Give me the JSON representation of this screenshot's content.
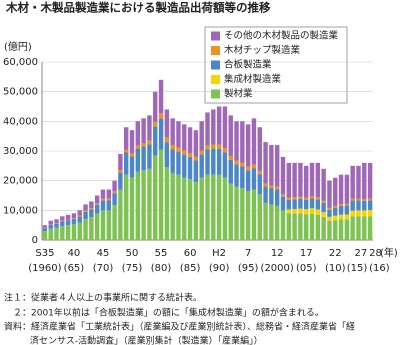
{
  "chart_data": {
    "type": "stacked_bar",
    "title": "木材・木製品製造業における製造品出荷額等の推移",
    "y_axis_label": "(億円)",
    "x_axis_label": "(年)",
    "categories": [
      "S35",
      null,
      null,
      null,
      null,
      "40",
      null,
      null,
      null,
      null,
      "45",
      null,
      null,
      null,
      null,
      "50",
      null,
      null,
      null,
      null,
      "55",
      null,
      null,
      null,
      null,
      "60",
      null,
      null,
      null,
      null,
      "H2",
      null,
      null,
      null,
      null,
      "7",
      null,
      null,
      null,
      null,
      "12",
      null,
      null,
      null,
      null,
      "17",
      null,
      null,
      null,
      null,
      "22",
      null,
      null,
      null,
      null,
      "27",
      "28"
    ],
    "category_years": [
      "(1960)",
      null,
      null,
      null,
      null,
      "(65)",
      null,
      null,
      null,
      null,
      "(70)",
      null,
      null,
      null,
      null,
      "(75)",
      null,
      null,
      null,
      null,
      "(80)",
      null,
      null,
      null,
      null,
      "(85)",
      null,
      null,
      null,
      null,
      "(90)",
      null,
      null,
      null,
      null,
      "(95)",
      null,
      null,
      null,
      null,
      "(2000)",
      null,
      null,
      null,
      null,
      "(05)",
      null,
      null,
      null,
      null,
      "(10)",
      null,
      null,
      null,
      null,
      "(15)",
      "(16)"
    ],
    "ylim": [
      0,
      60000
    ],
    "yticks": [
      0,
      {
        "value": 10000,
        "label": "10,000"
      },
      {
        "value": 20000,
        "label": "20,000"
      },
      {
        "value": 30000,
        "label": "30,000"
      },
      {
        "value": 40000,
        "label": "40,000"
      },
      {
        "value": 50000,
        "label": "50,000"
      },
      {
        "value": 60000,
        "label": "60,000"
      }
    ],
    "grid": true,
    "legend_position": "upper right",
    "series": [
      {
        "name": "製材業",
        "color": "#7dc353",
        "values": [
          3000,
          3800,
          4100,
          4700,
          5000,
          5300,
          5900,
          7100,
          7700,
          8900,
          10000,
          10000,
          11800,
          17000,
          22000,
          21000,
          23000,
          23500,
          24000,
          28500,
          30500,
          24500,
          22500,
          22000,
          21000,
          20500,
          19500,
          21000,
          22000,
          22000,
          22000,
          21000,
          19000,
          18000,
          17500,
          16500,
          17000,
          15500,
          12500,
          12000,
          11500,
          10000,
          9000,
          9000,
          9000,
          8700,
          8800,
          8500,
          7800,
          6500,
          6700,
          7000,
          7000,
          8000,
          8000,
          8000,
          8000
        ]
      },
      {
        "name": "集成材製造業",
        "color": "#f5d400",
        "values": [
          0,
          0,
          0,
          0,
          0,
          0,
          0,
          0,
          0,
          0,
          0,
          0,
          0,
          0,
          0,
          0,
          0,
          0,
          0,
          0,
          0,
          0,
          0,
          0,
          0,
          0,
          0,
          0,
          0,
          0,
          0,
          0,
          0,
          0,
          0,
          0,
          0,
          0,
          0,
          0,
          0,
          0,
          1300,
          1400,
          1600,
          1700,
          1900,
          1800,
          1600,
          1300,
          1500,
          1500,
          1600,
          1900,
          2000,
          2000,
          2100
        ]
      },
      {
        "name": "合板製造業",
        "color": "#4a86c8",
        "values": [
          1000,
          1300,
          1400,
          1600,
          1700,
          1800,
          2000,
          2400,
          2600,
          3000,
          3400,
          3400,
          4000,
          5800,
          7500,
          7200,
          7800,
          8000,
          8200,
          9800,
          10500,
          8500,
          8000,
          7800,
          7800,
          7500,
          7300,
          7800,
          8500,
          8800,
          8800,
          8500,
          8000,
          7500,
          7300,
          7000,
          7200,
          6700,
          5500,
          5500,
          5600,
          4600,
          3300,
          3300,
          3300,
          3200,
          3300,
          3400,
          3100,
          2400,
          2700,
          3000,
          3000,
          3500,
          3400,
          3200,
          3300
        ]
      },
      {
        "name": "木材チップ製造業",
        "color": "#f0901e",
        "values": [
          100,
          150,
          150,
          200,
          200,
          250,
          300,
          350,
          400,
          450,
          500,
          550,
          600,
          800,
          1000,
          1000,
          1100,
          1200,
          1300,
          1500,
          1700,
          1600,
          1500,
          1400,
          1400,
          1300,
          1200,
          1300,
          1300,
          1400,
          1400,
          1400,
          1300,
          1200,
          1200,
          1200,
          1200,
          1100,
          1000,
          900,
          900,
          800,
          700,
          700,
          700,
          700,
          700,
          700,
          700,
          600,
          600,
          600,
          600,
          600,
          600,
          600,
          600
        ]
      },
      {
        "name": "その他の木材製品の製造業",
        "color": "#a066b8",
        "values": [
          900,
          1250,
          1350,
          1500,
          1600,
          1650,
          1800,
          2150,
          2300,
          2650,
          3100,
          3050,
          3600,
          5400,
          7500,
          7800,
          8100,
          8300,
          8500,
          10200,
          11300,
          9400,
          9000,
          8800,
          8800,
          8700,
          9000,
          9900,
          11200,
          11800,
          12800,
          14100,
          13700,
          13300,
          14000,
          14300,
          15600,
          14700,
          14000,
          13600,
          14000,
          12600,
          11700,
          11600,
          11400,
          10700,
          11300,
          11600,
          10800,
          9200,
          9500,
          9900,
          9800,
          11000,
          11000,
          12200,
          12000
        ]
      }
    ],
    "notes": [
      "注１：従業者４人以上の事業所に関する統計表。",
      "２：2001年以前は「合板製造業」の額に「集成材製造業」の額が含まれる。",
      "資料：経済産業省「工業統計表」（産業編及び産業別統計表）、総務省・経済産業省「経",
      "済センサス-活動調査」（産業別集計（製造業）「産業編」）"
    ]
  }
}
